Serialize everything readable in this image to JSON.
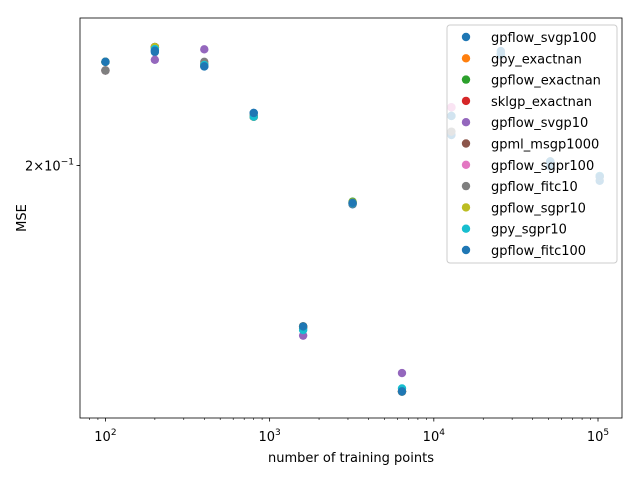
{
  "chart_data": {
    "type": "scatter",
    "title": "",
    "xlabel": "number of training points",
    "ylabel": "MSE",
    "xscale": "log",
    "yscale": "log",
    "xlim": [
      70,
      140000
    ],
    "ylim": [
      0.126,
      0.262
    ],
    "x_ticks": [
      {
        "value": 100,
        "base": "10",
        "exp": "2"
      },
      {
        "value": 1000,
        "base": "10",
        "exp": "3"
      },
      {
        "value": 10000,
        "base": "10",
        "exp": "4"
      },
      {
        "value": 100000,
        "base": "10",
        "exp": "5"
      }
    ],
    "y_ticks": [
      {
        "value": 0.2,
        "coef": "2",
        "times": "×",
        "base": "10",
        "exp": "−1"
      }
    ],
    "legend_position": "upper right",
    "grid": false,
    "series": [
      {
        "name": "gpflow_svgp100",
        "color": "#1f77b4",
        "points": [
          [
            100,
            0.2418
          ],
          [
            200,
            0.2462
          ],
          [
            400,
            0.2398
          ],
          [
            800,
            0.2202
          ],
          [
            1600,
            0.1485
          ],
          [
            3200,
            0.1863
          ],
          [
            6400,
            0.1322
          ],
          [
            12800,
            0.2115
          ],
          [
            25600,
            0.2466
          ],
          [
            51200,
            0.1997
          ],
          [
            102400,
            0.1945
          ]
        ]
      },
      {
        "name": "gpy_exactnan",
        "color": "#ff7f0e",
        "points": [
          [
            100,
            0.2418
          ],
          [
            200,
            0.2484
          ],
          [
            400,
            0.2404
          ],
          [
            800,
            0.2187
          ],
          [
            1600,
            0.149
          ],
          [
            3200,
            0.1868
          ],
          [
            6400,
            0.1323
          ]
        ]
      },
      {
        "name": "gpflow_exactnan",
        "color": "#2ca02c",
        "points": [
          [
            100,
            0.2418
          ],
          [
            200,
            0.2484
          ],
          [
            400,
            0.2404
          ],
          [
            800,
            0.2187
          ],
          [
            1600,
            0.149
          ],
          [
            3200,
            0.1872
          ],
          [
            6400,
            0.1323
          ]
        ]
      },
      {
        "name": "sklgp_exactnan",
        "color": "#d62728",
        "points": [
          [
            100,
            0.2418
          ],
          [
            200,
            0.2484
          ],
          [
            400,
            0.2404
          ],
          [
            800,
            0.2187
          ],
          [
            1600,
            0.149
          ],
          [
            3200,
            0.1868
          ],
          [
            6400,
            0.1323
          ]
        ]
      },
      {
        "name": "gpflow_svgp10",
        "color": "#9467bd",
        "points": [
          [
            100,
            0.238
          ],
          [
            200,
            0.2427
          ],
          [
            400,
            0.2474
          ],
          [
            800,
            0.2187
          ],
          [
            1600,
            0.1465
          ],
          [
            3200,
            0.1865
          ],
          [
            6400,
            0.1368
          ],
          [
            12800,
            0.2225
          ],
          [
            25600,
            0.245
          ],
          [
            51200,
            0.2015
          ],
          [
            102400,
            0.1962
          ]
        ]
      },
      {
        "name": "gpml_msgp1000",
        "color": "#8c564b",
        "points": [
          [
            100,
            0.238
          ],
          [
            200,
            0.2484
          ],
          [
            400,
            0.2404
          ],
          [
            800,
            0.219
          ],
          [
            1600,
            0.149
          ],
          [
            3200,
            0.1865
          ],
          [
            6400,
            0.1323
          ]
        ]
      },
      {
        "name": "gpflow_sgpr100",
        "color": "#e377c2",
        "points": [
          [
            100,
            0.2418
          ],
          [
            200,
            0.2484
          ],
          [
            400,
            0.2404
          ],
          [
            800,
            0.2187
          ],
          [
            1600,
            0.149
          ],
          [
            3200,
            0.1868
          ],
          [
            6400,
            0.1323
          ],
          [
            12800,
            0.2225
          ],
          [
            25600,
            0.2445
          ],
          [
            51200,
            0.2015
          ],
          [
            102400,
            0.196
          ]
        ]
      },
      {
        "name": "gpflow_fitc10",
        "color": "#7f7f7f",
        "points": [
          [
            100,
            0.238
          ],
          [
            200,
            0.2484
          ],
          [
            400,
            0.2418
          ],
          [
            800,
            0.2187
          ],
          [
            1600,
            0.149
          ],
          [
            3200,
            0.1868
          ],
          [
            6400,
            0.1323
          ],
          [
            12800,
            0.2128
          ],
          [
            25600,
            0.2452
          ],
          [
            51200,
            0.2015
          ],
          [
            102400,
            0.1962
          ]
        ]
      },
      {
        "name": "gpflow_sgpr10",
        "color": "#bcbd22",
        "points": [
          [
            100,
            0.2418
          ],
          [
            200,
            0.2484
          ],
          [
            400,
            0.2404
          ],
          [
            800,
            0.2187
          ],
          [
            1600,
            0.149
          ],
          [
            3200,
            0.187
          ],
          [
            6400,
            0.1323
          ],
          [
            12800,
            0.219
          ],
          [
            25600,
            0.245
          ],
          [
            51200,
            0.2015
          ],
          [
            102400,
            0.196
          ]
        ]
      },
      {
        "name": "gpy_sgpr10",
        "color": "#17becf",
        "points": [
          [
            100,
            0.2418
          ],
          [
            200,
            0.2475
          ],
          [
            400,
            0.2404
          ],
          [
            800,
            0.2187
          ],
          [
            1600,
            0.148
          ],
          [
            3200,
            0.1866
          ],
          [
            6400,
            0.133
          ],
          [
            12800,
            0.219
          ],
          [
            25600,
            0.245
          ],
          [
            51200,
            0.2015
          ],
          [
            102400,
            0.1962
          ]
        ]
      },
      {
        "name": "gpflow_fitc100",
        "color": "#1f77b4",
        "points": [
          [
            100,
            0.2418
          ],
          [
            200,
            0.2468
          ],
          [
            400,
            0.2398
          ],
          [
            800,
            0.2202
          ],
          [
            1600,
            0.149
          ],
          [
            3200,
            0.1868
          ],
          [
            6400,
            0.1323
          ],
          [
            12800,
            0.219
          ],
          [
            25600,
            0.2455
          ],
          [
            51200,
            0.2015
          ],
          [
            102400,
            0.196
          ]
        ]
      }
    ]
  }
}
